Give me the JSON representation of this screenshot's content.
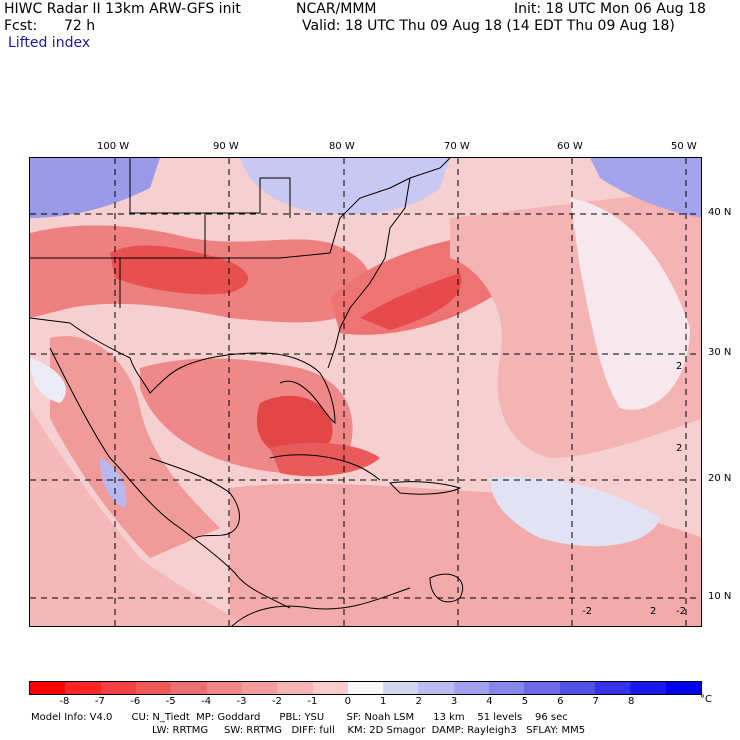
{
  "header": {
    "model_line": "HIWC Radar II 13km ARW-GFS init",
    "org": "NCAR/MMM",
    "init": "Init: 18 UTC Mon 06 Aug 18",
    "fcst_label": "Fcst:",
    "fcst_value": "72 h",
    "valid": "Valid: 18 UTC Thu 09 Aug 18 (14 EDT Thu 09 Aug 18)",
    "field": "Lifted index"
  },
  "map": {
    "longitude_labels": [
      "100 W",
      "90 W",
      "80 W",
      "70 W",
      "60 W",
      "50 W"
    ],
    "latitude_labels": [
      "40 N",
      "30 N",
      "20 N",
      "10 N"
    ],
    "contour_labels": [
      "2",
      "2",
      "-2",
      "2",
      "-2"
    ]
  },
  "colorbar": {
    "colors": [
      "#ff0000",
      "#ff2525",
      "#f74242",
      "#f25a5a",
      "#ef7070",
      "#f08686",
      "#f39c9c",
      "#f6b4b4",
      "#f8cccc",
      "#f8f8f8",
      "#d6d6f4",
      "#bcbcf0",
      "#a2a2ee",
      "#8787ea",
      "#6c6ce8",
      "#5050e4",
      "#3434e6",
      "#1a1ae8",
      "#0000ee"
    ],
    "tick_labels": [
      "-8",
      "-7",
      "-6",
      "-5",
      "-4",
      "-3",
      "-2",
      "-1",
      "0",
      "1",
      "2",
      "3",
      "4",
      "5",
      "6",
      "7",
      "8"
    ],
    "unit": "°C"
  },
  "footer": {
    "line1": "Model Info: V4.0      CU: N_Tiedt  MP: Goddard      PBL: YSU       SF: Noah LSM      13 km    51 levels    96 sec",
    "line2": "LW: RRTMG     SW: RRTMG   DIFF: full    KM: 2D Smagor  DAMP: Rayleigh3   SFLAY: MM5"
  }
}
